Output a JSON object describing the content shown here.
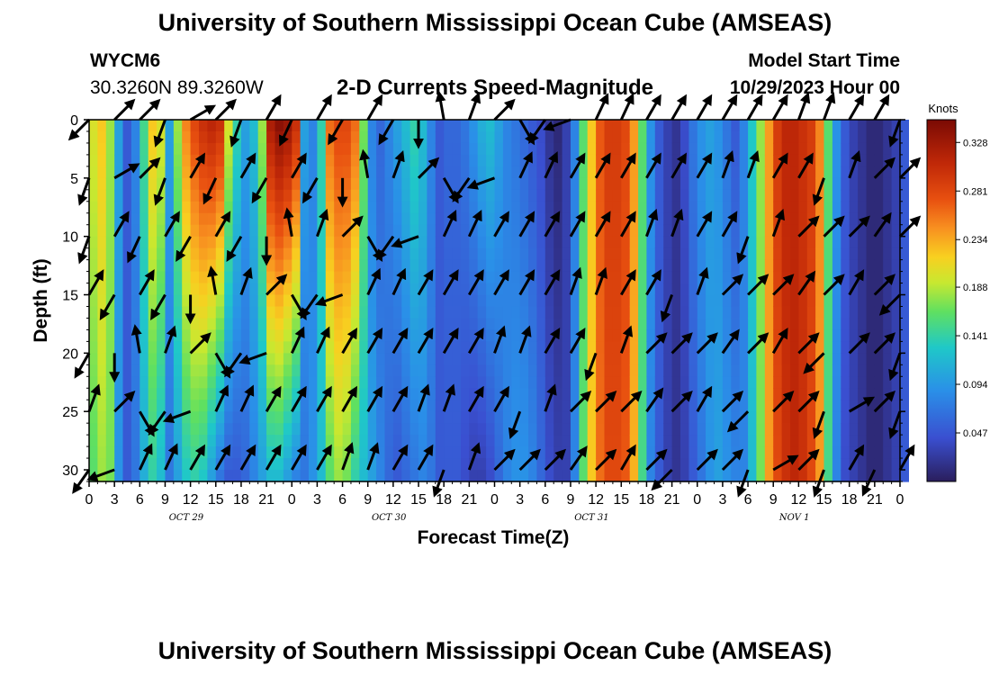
{
  "header": {
    "title": "University of Southern Mississippi Ocean Cube (AMSEAS)",
    "station": "WYCM6",
    "coords": "30.3260N  89.3260W",
    "plot_title": "2-D Currents Speed-Magnitude",
    "model_start_label": "Model Start Time",
    "model_start_value": "10/29/2023 Hour 00",
    "footer_title": "University of Southern Mississippi Ocean Cube (AMSEAS)"
  },
  "chart_data": {
    "type": "heatmap",
    "title": "2-D Currents Speed-Magnitude",
    "xlabel": "Forecast Time(Z)",
    "ylabel": "Depth (ft)",
    "x_unit": "hours since 10/29/2023 00Z",
    "xlim": [
      0,
      96
    ],
    "ylim": [
      31,
      0
    ],
    "x_ticks": [
      0,
      3,
      6,
      9,
      12,
      15,
      18,
      21,
      24,
      27,
      30,
      33,
      36,
      39,
      42,
      45,
      48,
      51,
      54,
      57,
      60,
      63,
      66,
      69,
      72,
      75,
      78,
      81,
      84,
      87,
      90,
      93,
      96
    ],
    "x_tick_labels": [
      "0",
      "3",
      "6",
      "9",
      "12",
      "15",
      "18",
      "21",
      "0",
      "3",
      "6",
      "9",
      "12",
      "15",
      "18",
      "21",
      "0",
      "3",
      "6",
      "9",
      "12",
      "15",
      "18",
      "21",
      "0",
      "3",
      "6",
      "9",
      "12",
      "15",
      "18",
      "21",
      "0"
    ],
    "y_ticks": [
      0,
      5,
      10,
      15,
      20,
      25,
      30
    ],
    "y_tick_labels": [
      "0",
      "5",
      "10",
      "15",
      "20",
      "25",
      "30"
    ],
    "date_labels": [
      {
        "text": "OCT 29",
        "x": 11.5
      },
      {
        "text": "OCT 30",
        "x": 35.5
      },
      {
        "text": "OCT 31",
        "x": 59.5
      },
      {
        "text": "NOV 1",
        "x": 83.5
      }
    ],
    "colorbar": {
      "label": "Knots",
      "ticks": [
        "0.328",
        "0.281",
        "0.234",
        "0.188",
        "0.141",
        "0.094",
        "0.047"
      ],
      "tick_values": [
        0.328,
        0.281,
        0.234,
        0.188,
        0.141,
        0.094,
        0.047
      ],
      "range": [
        0.0,
        0.35
      ]
    },
    "speed_by_hour_surface": [
      0.2,
      0.22,
      0.18,
      0.1,
      0.05,
      0.08,
      0.15,
      0.22,
      0.2,
      0.1,
      0.18,
      0.25,
      0.28,
      0.3,
      0.31,
      0.3,
      0.2,
      0.14,
      0.1,
      0.12,
      0.18,
      0.32,
      0.34,
      0.33,
      0.3,
      0.1,
      0.08,
      0.14,
      0.26,
      0.28,
      0.28,
      0.26,
      0.17,
      0.08,
      0.06,
      0.08,
      0.1,
      0.12,
      0.14,
      0.12,
      0.08,
      0.05,
      0.06,
      0.06,
      0.07,
      0.09,
      0.11,
      0.12,
      0.1,
      0.08,
      0.07,
      0.06,
      0.05,
      0.04,
      0.02,
      0.01,
      0.03,
      0.08,
      0.16,
      0.22,
      0.27,
      0.29,
      0.29,
      0.28,
      0.24,
      0.16,
      0.09,
      0.05,
      0.03,
      0.02,
      0.04,
      0.07,
      0.09,
      0.1,
      0.09,
      0.07,
      0.05,
      0.08,
      0.13,
      0.18,
      0.24,
      0.29,
      0.31,
      0.31,
      0.3,
      0.29,
      0.25,
      0.16,
      0.09,
      0.05,
      0.03,
      0.02,
      0.01,
      0.01,
      0.02,
      0.03,
      0.05
    ],
    "speed_by_hour_bottom": [
      0.16,
      0.18,
      0.17,
      0.09,
      0.05,
      0.07,
      0.11,
      0.14,
      0.12,
      0.07,
      0.1,
      0.13,
      0.14,
      0.13,
      0.1,
      0.07,
      0.05,
      0.05,
      0.06,
      0.08,
      0.1,
      0.12,
      0.12,
      0.1,
      0.08,
      0.07,
      0.09,
      0.12,
      0.16,
      0.18,
      0.17,
      0.14,
      0.12,
      0.1,
      0.08,
      0.06,
      0.05,
      0.06,
      0.07,
      0.08,
      0.07,
      0.05,
      0.05,
      0.05,
      0.04,
      0.03,
      0.03,
      0.04,
      0.06,
      0.08,
      0.09,
      0.09,
      0.08,
      0.06,
      0.04,
      0.03,
      0.03,
      0.08,
      0.16,
      0.22,
      0.26,
      0.28,
      0.28,
      0.27,
      0.23,
      0.15,
      0.08,
      0.05,
      0.03,
      0.02,
      0.03,
      0.05,
      0.07,
      0.09,
      0.1,
      0.09,
      0.08,
      0.08,
      0.12,
      0.17,
      0.24,
      0.28,
      0.3,
      0.31,
      0.3,
      0.28,
      0.24,
      0.15,
      0.08,
      0.04,
      0.03,
      0.02,
      0.01,
      0.01,
      0.02,
      0.03,
      0.05
    ],
    "arrow_directions_deg": [
      225,
      45,
      45,
      200,
      60,
      45,
      200,
      30,
      205,
      30,
      210,
      30,
      210,
      180,
      350,
      20,
      45,
      150,
      215,
      250,
      25,
      25,
      30,
      30,
      30,
      30,
      30,
      30,
      20,
      20,
      30,
      30,
      200,
      20,
      45,
      45,
      45,
      35,
      45,
      30,
      45
    ],
    "arrow_hours": [
      0,
      3,
      6,
      9,
      12,
      15,
      18,
      21,
      24,
      27,
      30,
      33,
      36,
      39,
      42,
      45,
      48,
      51,
      54,
      57,
      60,
      63,
      66,
      69,
      72,
      75,
      78,
      81,
      84,
      87,
      90,
      93,
      96
    ],
    "arrow_depths": [
      0,
      5,
      10,
      15,
      20,
      25,
      30
    ]
  }
}
